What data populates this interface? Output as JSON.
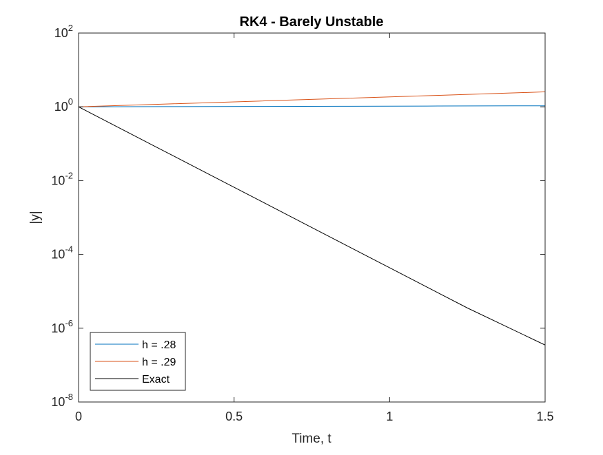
{
  "chart_data": {
    "type": "line",
    "title": "RK4 - Barely Unstable",
    "xlabel": "Time, t",
    "ylabel": "|y|",
    "xlim": [
      0,
      1.5
    ],
    "ylim": [
      1e-08,
      100
    ],
    "yscale": "log",
    "grid": false,
    "legend_position": "bottom-left",
    "x_ticks": [
      {
        "value": 0,
        "label": "0"
      },
      {
        "value": 0.5,
        "label": "0.5"
      },
      {
        "value": 1,
        "label": "1"
      },
      {
        "value": 1.5,
        "label": "1.5"
      }
    ],
    "y_ticks": [
      {
        "value": 1e-08,
        "base": "10",
        "exp": "-8"
      },
      {
        "value": 1e-06,
        "base": "10",
        "exp": "-6"
      },
      {
        "value": 0.0001,
        "base": "10",
        "exp": "-4"
      },
      {
        "value": 0.01,
        "base": "10",
        "exp": "-2"
      },
      {
        "value": 1,
        "base": "10",
        "exp": "0"
      },
      {
        "value": 100,
        "base": "10",
        "exp": "2"
      }
    ],
    "series": [
      {
        "name": "h = .28",
        "color": "#0072BD",
        "x": [
          0,
          0.28,
          0.56,
          0.84,
          1.12,
          1.4,
          1.5
        ],
        "y": [
          1.0,
          1.012,
          1.024,
          1.037,
          1.049,
          1.062,
          1.066
        ]
      },
      {
        "name": "h = .29",
        "color": "#D95319",
        "x": [
          0,
          0.29,
          0.58,
          0.87,
          1.16,
          1.45,
          1.5
        ],
        "y": [
          1.0,
          1.197,
          1.433,
          1.716,
          2.054,
          2.459,
          2.55
        ]
      },
      {
        "name": "Exact",
        "color": "#000000",
        "x": [
          0,
          0.25,
          0.5,
          0.75,
          1.0,
          1.25,
          1.5
        ],
        "y": [
          1.0,
          0.0812,
          0.0066,
          0.000536,
          4.35e-05,
          3.54e-06,
          3.5e-07
        ]
      }
    ]
  }
}
